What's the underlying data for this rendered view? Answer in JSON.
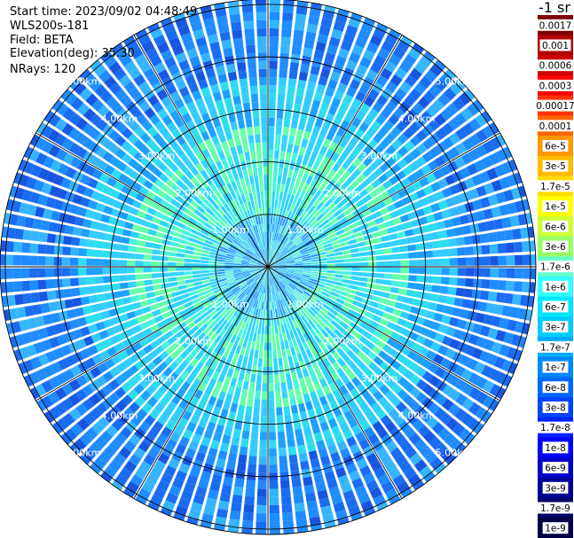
{
  "header": {
    "start_time": "Start time: 2023/09/02 04:48:49",
    "instrument": "WLS200s-181",
    "field": "Field: BETA",
    "elevation": "Elevation(deg): 35.30",
    "nrays": "NRays: 120"
  },
  "chart_data": {
    "type": "heatmap",
    "projection": "polar-ppi",
    "field": "BETA",
    "nrays": 120,
    "elevation_deg": 35.3,
    "range_rings_km": [
      1,
      2,
      3,
      4,
      5
    ],
    "range_ring_labels": [
      "1.00km",
      "2.00km",
      "3.00km",
      "4.00km",
      "5.00km"
    ],
    "max_range_km": 5.1,
    "spokes_deg": [
      0,
      30,
      60,
      90,
      120,
      150,
      180,
      210,
      240,
      270,
      300,
      330
    ],
    "colorbar": {
      "unit_label": "-1 sr",
      "tick_labels": [
        "0.0017",
        "0.001",
        "0.0006",
        "0.0003",
        "0.00017",
        "0.0001",
        "6e-5",
        "3e-5",
        "1.7e-5",
        "1e-5",
        "6e-6",
        "3e-6",
        "1.7e-6",
        "1e-6",
        "6e-7",
        "3e-7",
        "1.7e-7",
        "1e-7",
        "6e-8",
        "3e-8",
        "1.7e-8",
        "1e-8",
        "6e-9",
        "3e-9",
        "1.7e-9",
        "1e-9"
      ],
      "colors": [
        "#800000",
        "#b30000",
        "#cc0000",
        "#ff0000",
        "#ff3300",
        "#ff6600",
        "#ff9900",
        "#ffbb00",
        "#ffdd00",
        "#ffff00",
        "#ccff33",
        "#99ff66",
        "#66ffcc",
        "#33ffff",
        "#00e6ff",
        "#00ccff",
        "#00aaff",
        "#0088ff",
        "#0066ff",
        "#0044ff",
        "#0022ff",
        "#0000ff",
        "#0000cc",
        "#000099",
        "#000066",
        "#000044"
      ]
    }
  }
}
